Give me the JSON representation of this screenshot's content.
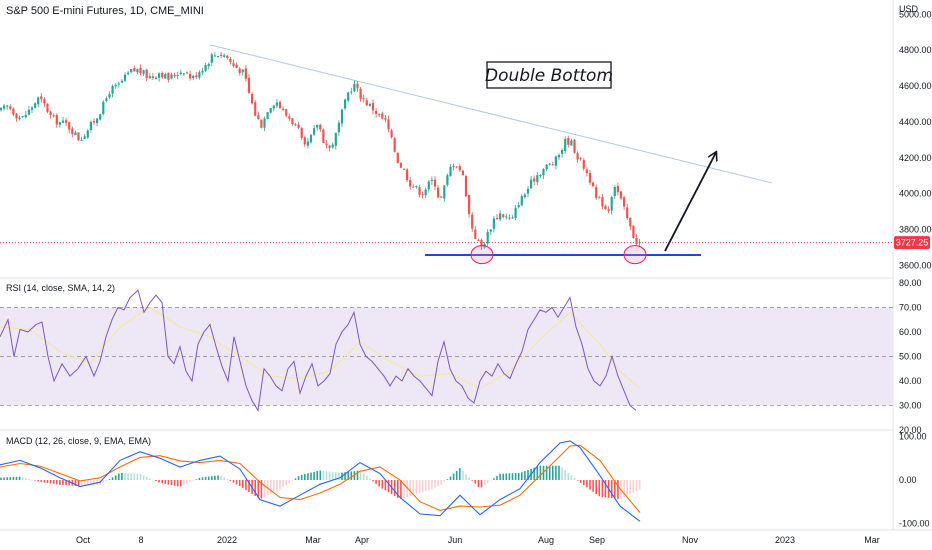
{
  "chart_data": {
    "type": "candlestick",
    "title": "S&P 500 E-mini Futures, 1D, CME_MINI",
    "currency": "USD",
    "colors": {
      "up": "#26a69a",
      "down": "#ef5350",
      "rsi": "#7e57c2",
      "rsi_ma": "#f5e7a3",
      "rsi_band": "#ede7f6",
      "macd": "#2962ff",
      "signal": "#ff6d00",
      "trendline": "#b2c8e8",
      "support": "#1e49d8",
      "circle": "#f48fb1",
      "last_price": "#f23645"
    },
    "price_axis": {
      "ylim": [
        3530,
        5080
      ],
      "ticks": [
        "5000.00",
        "4800.00",
        "4600.00",
        "4400.00",
        "4200.00",
        "4000.00",
        "3800.00",
        "3600.00"
      ]
    },
    "x_ticks": [
      "Oct",
      "8",
      "2022",
      "Mar",
      "Apr",
      "Jun",
      "Aug",
      "Sep",
      "Nov",
      "2023",
      "Mar"
    ],
    "close_path": [
      [
        0,
        4460
      ],
      [
        8,
        4490
      ],
      [
        16,
        4440
      ],
      [
        22,
        4420
      ],
      [
        30,
        4470
      ],
      [
        38,
        4530
      ],
      [
        44,
        4500
      ],
      [
        52,
        4420
      ],
      [
        58,
        4400
      ],
      [
        66,
        4390
      ],
      [
        74,
        4340
      ],
      [
        80,
        4300
      ],
      [
        88,
        4360
      ],
      [
        96,
        4420
      ],
      [
        104,
        4500
      ],
      [
        110,
        4580
      ],
      [
        118,
        4600
      ],
      [
        124,
        4640
      ],
      [
        130,
        4680
      ],
      [
        138,
        4690
      ],
      [
        146,
        4660
      ],
      [
        152,
        4650
      ],
      [
        160,
        4680
      ],
      [
        168,
        4640
      ],
      [
        176,
        4670
      ],
      [
        184,
        4690
      ],
      [
        192,
        4640
      ],
      [
        200,
        4690
      ],
      [
        206,
        4720
      ],
      [
        212,
        4770
      ],
      [
        218,
        4780
      ],
      [
        226,
        4770
      ],
      [
        232,
        4720
      ],
      [
        238,
        4700
      ],
      [
        244,
        4670
      ],
      [
        250,
        4540
      ],
      [
        256,
        4430
      ],
      [
        262,
        4380
      ],
      [
        268,
        4480
      ],
      [
        276,
        4520
      ],
      [
        284,
        4450
      ],
      [
        290,
        4420
      ],
      [
        298,
        4360
      ],
      [
        304,
        4250
      ],
      [
        310,
        4300
      ],
      [
        318,
        4400
      ],
      [
        324,
        4290
      ],
      [
        330,
        4250
      ],
      [
        336,
        4330
      ],
      [
        342,
        4450
      ],
      [
        348,
        4560
      ],
      [
        354,
        4610
      ],
      [
        360,
        4550
      ],
      [
        366,
        4510
      ],
      [
        372,
        4480
      ],
      [
        380,
        4430
      ],
      [
        386,
        4400
      ],
      [
        392,
        4290
      ],
      [
        398,
        4180
      ],
      [
        404,
        4130
      ],
      [
        410,
        4060
      ],
      [
        416,
        4030
      ],
      [
        422,
        4000
      ],
      [
        428,
        4050
      ],
      [
        434,
        4080
      ],
      [
        440,
        3950
      ],
      [
        446,
        4070
      ],
      [
        452,
        4170
      ],
      [
        458,
        4160
      ],
      [
        464,
        4080
      ],
      [
        470,
        3850
      ],
      [
        476,
        3750
      ],
      [
        482,
        3700
      ],
      [
        488,
        3780
      ],
      [
        494,
        3860
      ],
      [
        500,
        3890
      ],
      [
        506,
        3870
      ],
      [
        512,
        3850
      ],
      [
        518,
        3950
      ],
      [
        524,
        3990
      ],
      [
        530,
        4050
      ],
      [
        536,
        4100
      ],
      [
        542,
        4130
      ],
      [
        548,
        4160
      ],
      [
        554,
        4170
      ],
      [
        560,
        4230
      ],
      [
        566,
        4300
      ],
      [
        572,
        4280
      ],
      [
        578,
        4200
      ],
      [
        584,
        4150
      ],
      [
        590,
        4080
      ],
      [
        596,
        3970
      ],
      [
        602,
        3950
      ],
      [
        608,
        3900
      ],
      [
        614,
        4060
      ],
      [
        620,
        3980
      ],
      [
        626,
        3880
      ],
      [
        632,
        3780
      ],
      [
        638,
        3720
      ],
      [
        641,
        3727
      ]
    ],
    "candles_rendered": "generated along close_path",
    "trendline": {
      "from": [
        210,
        4830
      ],
      "to": [
        772,
        4060
      ]
    },
    "support_line": {
      "from": [
        425,
        3658
      ],
      "to": [
        701,
        3658
      ]
    },
    "bottom_circles": [
      [
        482,
        3660
      ],
      [
        635,
        3660
      ]
    ],
    "projection_arrow": {
      "from": [
        665,
        3680
      ],
      "to": [
        716,
        4230
      ]
    },
    "annotation": "Double Bottom",
    "last_price": "3727.25",
    "rsi": {
      "label": "RSI (14, close, SMA, 14, 2)",
      "ylim": [
        20,
        82
      ],
      "ticks": [
        "80.00",
        "70.00",
        "60.00",
        "50.00",
        "40.00",
        "30.00",
        "20.00"
      ],
      "bands": [
        30,
        50,
        70
      ],
      "values": [
        [
          0,
          58
        ],
        [
          8,
          65
        ],
        [
          14,
          50
        ],
        [
          20,
          61
        ],
        [
          28,
          60
        ],
        [
          36,
          63
        ],
        [
          42,
          64
        ],
        [
          48,
          50
        ],
        [
          54,
          40
        ],
        [
          62,
          47
        ],
        [
          70,
          42
        ],
        [
          78,
          45
        ],
        [
          86,
          50
        ],
        [
          94,
          42
        ],
        [
          100,
          48
        ],
        [
          106,
          58
        ],
        [
          112,
          65
        ],
        [
          118,
          70
        ],
        [
          124,
          69
        ],
        [
          130,
          74
        ],
        [
          138,
          77
        ],
        [
          144,
          68
        ],
        [
          150,
          72
        ],
        [
          156,
          75
        ],
        [
          162,
          72
        ],
        [
          168,
          50
        ],
        [
          174,
          47
        ],
        [
          180,
          54
        ],
        [
          186,
          44
        ],
        [
          192,
          40
        ],
        [
          198,
          55
        ],
        [
          204,
          60
        ],
        [
          210,
          63
        ],
        [
          216,
          54
        ],
        [
          222,
          46
        ],
        [
          228,
          40
        ],
        [
          234,
          58
        ],
        [
          240,
          48
        ],
        [
          246,
          38
        ],
        [
          252,
          32
        ],
        [
          258,
          28
        ],
        [
          264,
          45
        ],
        [
          270,
          42
        ],
        [
          276,
          38
        ],
        [
          282,
          36
        ],
        [
          288,
          45
        ],
        [
          294,
          48
        ],
        [
          300,
          35
        ],
        [
          306,
          42
        ],
        [
          312,
          47
        ],
        [
          318,
          38
        ],
        [
          324,
          40
        ],
        [
          330,
          43
        ],
        [
          336,
          55
        ],
        [
          342,
          60
        ],
        [
          348,
          63
        ],
        [
          354,
          68
        ],
        [
          360,
          55
        ],
        [
          366,
          50
        ],
        [
          372,
          48
        ],
        [
          378,
          45
        ],
        [
          384,
          42
        ],
        [
          390,
          38
        ],
        [
          396,
          42
        ],
        [
          402,
          40
        ],
        [
          408,
          45
        ],
        [
          414,
          42
        ],
        [
          420,
          40
        ],
        [
          426,
          37
        ],
        [
          432,
          34
        ],
        [
          438,
          48
        ],
        [
          444,
          56
        ],
        [
          450,
          45
        ],
        [
          456,
          40
        ],
        [
          462,
          38
        ],
        [
          468,
          33
        ],
        [
          474,
          31
        ],
        [
          480,
          40
        ],
        [
          486,
          44
        ],
        [
          492,
          42
        ],
        [
          498,
          47
        ],
        [
          504,
          43
        ],
        [
          510,
          41
        ],
        [
          516,
          47
        ],
        [
          522,
          52
        ],
        [
          528,
          61
        ],
        [
          534,
          65
        ],
        [
          540,
          69
        ],
        [
          546,
          68
        ],
        [
          552,
          70
        ],
        [
          558,
          66
        ],
        [
          564,
          70
        ],
        [
          570,
          74
        ],
        [
          576,
          62
        ],
        [
          582,
          55
        ],
        [
          588,
          45
        ],
        [
          594,
          40
        ],
        [
          600,
          38
        ],
        [
          606,
          42
        ],
        [
          612,
          50
        ],
        [
          618,
          42
        ],
        [
          624,
          36
        ],
        [
          630,
          30
        ],
        [
          636,
          28
        ]
      ],
      "rsi_ma": [
        [
          0,
          62
        ],
        [
          30,
          61
        ],
        [
          60,
          52
        ],
        [
          90,
          47
        ],
        [
          120,
          62
        ],
        [
          150,
          70
        ],
        [
          180,
          62
        ],
        [
          210,
          58
        ],
        [
          240,
          50
        ],
        [
          270,
          42
        ],
        [
          300,
          41
        ],
        [
          330,
          44
        ],
        [
          360,
          56
        ],
        [
          390,
          48
        ],
        [
          420,
          42
        ],
        [
          450,
          43
        ],
        [
          480,
          37
        ],
        [
          510,
          44
        ],
        [
          540,
          57
        ],
        [
          570,
          68
        ],
        [
          600,
          55
        ],
        [
          620,
          44
        ],
        [
          640,
          37
        ]
      ]
    },
    "macd": {
      "label": "MACD (12, 26, close, 9, EMA, EMA)",
      "ylim": [
        -115,
        115
      ],
      "ticks": [
        "100.00",
        "0.00",
        "-100.00"
      ],
      "macd_line": [
        [
          0,
          35
        ],
        [
          20,
          45
        ],
        [
          40,
          28
        ],
        [
          60,
          5
        ],
        [
          80,
          -15
        ],
        [
          100,
          -5
        ],
        [
          120,
          45
        ],
        [
          140,
          65
        ],
        [
          160,
          50
        ],
        [
          180,
          30
        ],
        [
          200,
          45
        ],
        [
          220,
          55
        ],
        [
          240,
          25
        ],
        [
          260,
          -45
        ],
        [
          280,
          -60
        ],
        [
          300,
          -35
        ],
        [
          320,
          -10
        ],
        [
          340,
          5
        ],
        [
          360,
          40
        ],
        [
          380,
          15
        ],
        [
          400,
          -40
        ],
        [
          420,
          -78
        ],
        [
          440,
          -82
        ],
        [
          460,
          -35
        ],
        [
          480,
          -80
        ],
        [
          500,
          -45
        ],
        [
          520,
          -20
        ],
        [
          540,
          40
        ],
        [
          560,
          85
        ],
        [
          570,
          90
        ],
        [
          580,
          75
        ],
        [
          600,
          10
        ],
        [
          620,
          -60
        ],
        [
          640,
          -95
        ]
      ],
      "signal_line": [
        [
          0,
          30
        ],
        [
          20,
          38
        ],
        [
          40,
          32
        ],
        [
          60,
          15
        ],
        [
          80,
          -2
        ],
        [
          100,
          5
        ],
        [
          120,
          30
        ],
        [
          140,
          52
        ],
        [
          160,
          56
        ],
        [
          180,
          44
        ],
        [
          200,
          40
        ],
        [
          220,
          45
        ],
        [
          240,
          38
        ],
        [
          260,
          -5
        ],
        [
          280,
          -40
        ],
        [
          300,
          -45
        ],
        [
          320,
          -30
        ],
        [
          340,
          -10
        ],
        [
          360,
          20
        ],
        [
          380,
          30
        ],
        [
          400,
          0
        ],
        [
          420,
          -50
        ],
        [
          440,
          -70
        ],
        [
          460,
          -60
        ],
        [
          480,
          -62
        ],
        [
          500,
          -58
        ],
        [
          520,
          -35
        ],
        [
          540,
          10
        ],
        [
          560,
          55
        ],
        [
          570,
          78
        ],
        [
          580,
          80
        ],
        [
          600,
          45
        ],
        [
          620,
          -20
        ],
        [
          640,
          -75
        ]
      ]
    }
  }
}
